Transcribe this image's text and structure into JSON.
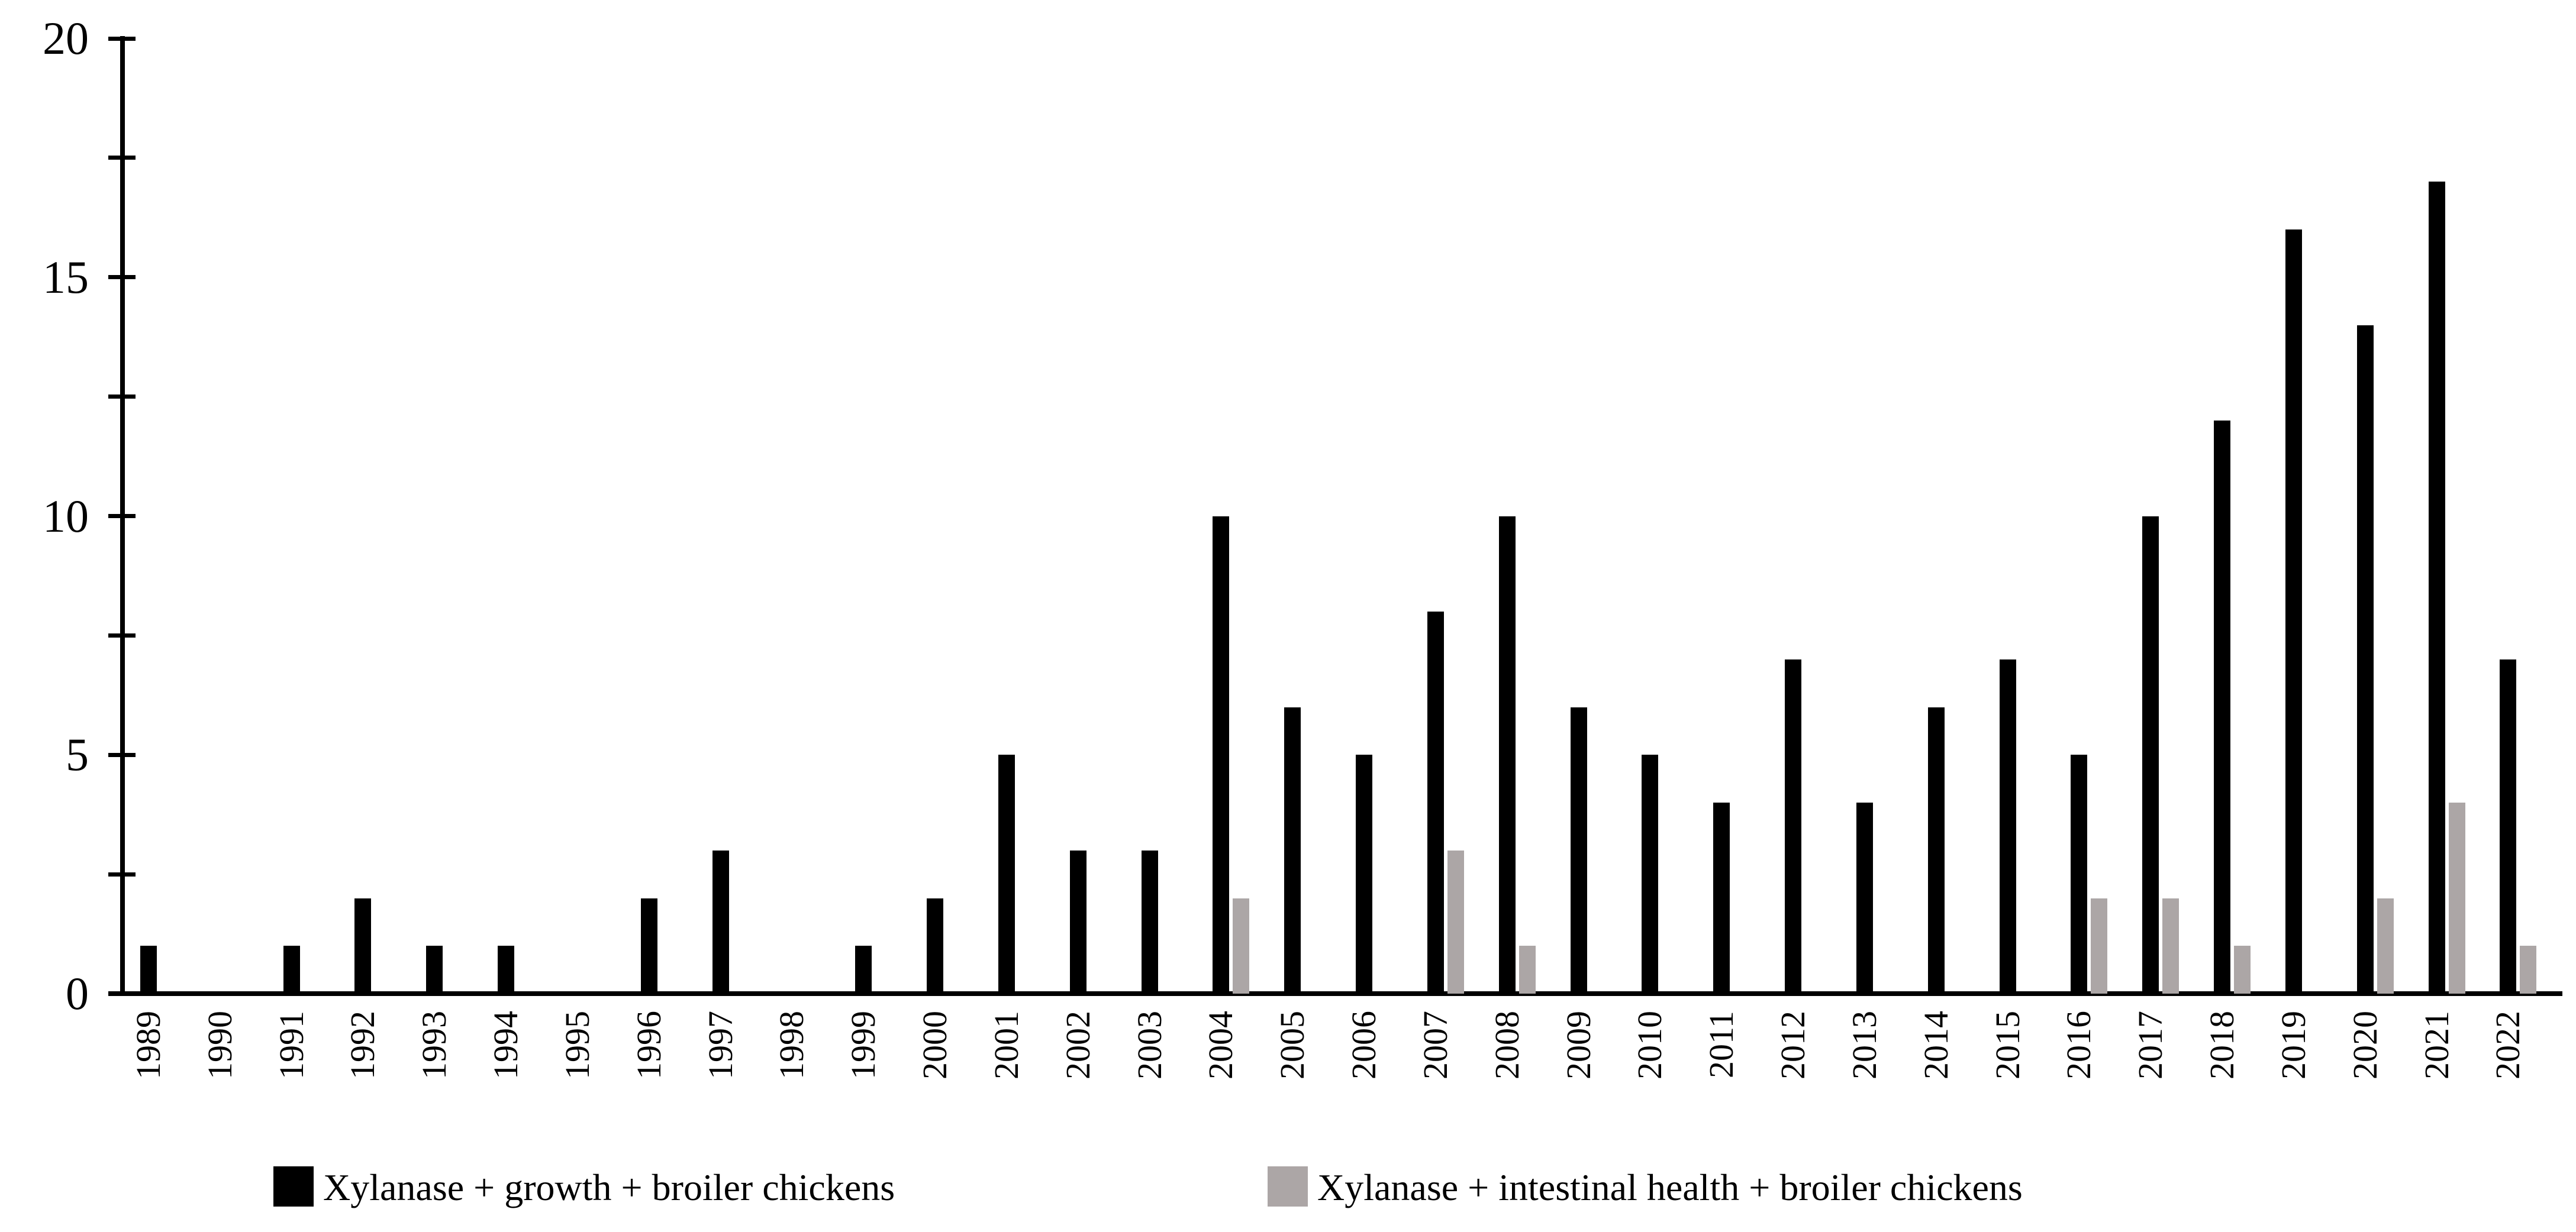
{
  "chart_data": {
    "type": "bar",
    "title": "",
    "xlabel": "",
    "ylabel": "",
    "ylim": [
      0,
      20
    ],
    "ytick_interval_minor": 2.5,
    "ytick_labels": [
      "0",
      "5",
      "10",
      "15",
      "20"
    ],
    "yticks": [
      0,
      2.5,
      5,
      7.5,
      10,
      12.5,
      15,
      17.5,
      20
    ],
    "grid": false,
    "legend_position": "bottom",
    "categories": [
      "1989",
      "1990",
      "1991",
      "1992",
      "1993",
      "1994",
      "1995",
      "1996",
      "1997",
      "1998",
      "1999",
      "2000",
      "2001",
      "2002",
      "2003",
      "2004",
      "2005",
      "2006",
      "2007",
      "2008",
      "2009",
      "2010",
      "2011",
      "2012",
      "2013",
      "2014",
      "2015",
      "2016",
      "2017",
      "2018",
      "2019",
      "2020",
      "2021",
      "2022"
    ],
    "series": [
      {
        "name": "Xylanase + growth + broiler chickens",
        "color": "#000000",
        "values": [
          1,
          0,
          1,
          2,
          1,
          1,
          0,
          2,
          3,
          0,
          1,
          2,
          5,
          3,
          3,
          10,
          6,
          5,
          8,
          10,
          6,
          5,
          4,
          7,
          4,
          6,
          7,
          5,
          10,
          12,
          16,
          14,
          17,
          7
        ]
      },
      {
        "name": "Xylanase + intestinal health + broiler chickens",
        "color": "#aca6a6",
        "values": [
          0,
          0,
          0,
          0,
          0,
          0,
          0,
          0,
          0,
          0,
          0,
          0,
          0,
          0,
          0,
          2,
          0,
          0,
          3,
          1,
          0,
          0,
          0,
          0,
          0,
          0,
          0,
          2,
          2,
          1,
          0,
          2,
          4,
          1
        ]
      }
    ]
  },
  "legend": {
    "growth_label": "Xylanase + growth + broiler chickens",
    "health_label": "Xylanase + intestinal health + broiler chickens"
  }
}
